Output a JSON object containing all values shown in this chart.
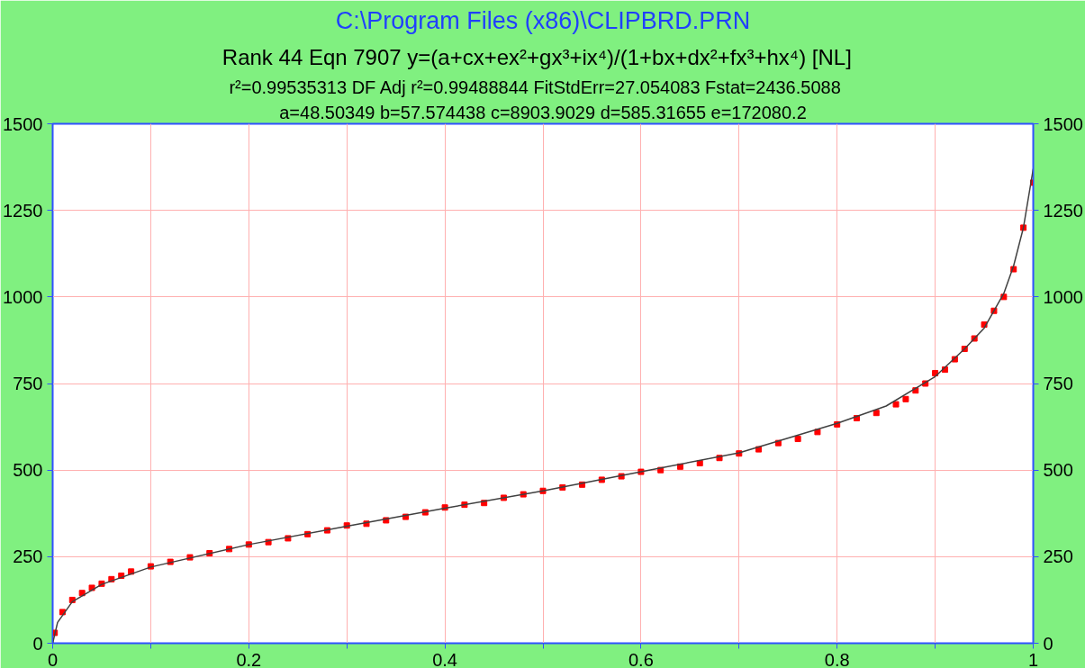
{
  "chart_data": {
    "type": "scatter",
    "title": "C:\\Program Files (x86)\\CLIPBRD.PRN",
    "subtitle": "Rank 44  Eqn 7907  y=(a+cx+ex²+gx³+ix⁴)/(1+bx+dx²+fx³+hx⁴) [NL]",
    "annotations": [
      "r²=0.99535313  DF Adj r²=0.99488844  FitStdErr=27.054083  Fstat=2436.5088",
      "a=48.50349 b=57.574438 c=8903.9029 d=585.31655 e=172080.2"
    ],
    "xlim": [
      0,
      1
    ],
    "ylim": [
      0,
      1500
    ],
    "y2lim": [
      0,
      1500
    ],
    "xticks": [
      0,
      {
        "value": 0.1,
        "label": null
      },
      0.2,
      {
        "value": 0.3,
        "label": null
      },
      0.4,
      {
        "value": 0.5,
        "label": null
      },
      0.6,
      {
        "value": 0.7,
        "label": null
      },
      0.8,
      {
        "value": 0.9,
        "label": null
      },
      1
    ],
    "yticks": [
      0,
      250,
      500,
      750,
      1000,
      1250,
      1500
    ],
    "y2ticks": [
      0,
      250,
      500,
      750,
      1000,
      1250,
      1500
    ],
    "grid": true,
    "series": [
      {
        "marker": "square",
        "color": "#ff0000",
        "x": [
          0.002,
          0.01,
          0.02,
          0.03,
          0.04,
          0.05,
          0.06,
          0.07,
          0.08,
          0.1,
          0.12,
          0.14,
          0.16,
          0.18,
          0.2,
          0.22,
          0.24,
          0.26,
          0.28,
          0.3,
          0.32,
          0.34,
          0.36,
          0.38,
          0.4,
          0.42,
          0.44,
          0.46,
          0.48,
          0.5,
          0.52,
          0.54,
          0.56,
          0.58,
          0.6,
          0.62,
          0.64,
          0.66,
          0.68,
          0.7,
          0.72,
          0.74,
          0.76,
          0.78,
          0.8,
          0.82,
          0.84,
          0.86,
          0.87,
          0.88,
          0.89,
          0.9,
          0.91,
          0.92,
          0.93,
          0.94,
          0.95,
          0.96,
          0.97,
          0.98,
          0.99,
          1
        ],
        "values": [
          30,
          90,
          125,
          145,
          160,
          172,
          185,
          195,
          207,
          222,
          235,
          248,
          260,
          272,
          285,
          292,
          303,
          315,
          326,
          340,
          345,
          355,
          365,
          378,
          392,
          400,
          405,
          420,
          430,
          440,
          450,
          458,
          472,
          482,
          495,
          500,
          510,
          520,
          535,
          548,
          560,
          578,
          590,
          610,
          632,
          650,
          665,
          690,
          705,
          730,
          750,
          780,
          790,
          820,
          850,
          880,
          920,
          960,
          1000,
          1080,
          1200,
          1330
        ]
      },
      {
        "type": "line",
        "color": "#404040",
        "x": [
          0,
          0.005,
          0.02,
          0.05,
          0.1,
          0.2,
          0.3,
          0.4,
          0.5,
          0.6,
          0.7,
          0.8,
          0.85,
          0.9,
          0.93,
          0.95,
          0.97,
          0.98,
          0.99,
          1
        ],
        "values": [
          0,
          60,
          120,
          170,
          220,
          285,
          338,
          390,
          440,
          495,
          550,
          635,
          685,
          770,
          850,
          910,
          1010,
          1090,
          1200,
          1370
        ]
      }
    ]
  }
}
